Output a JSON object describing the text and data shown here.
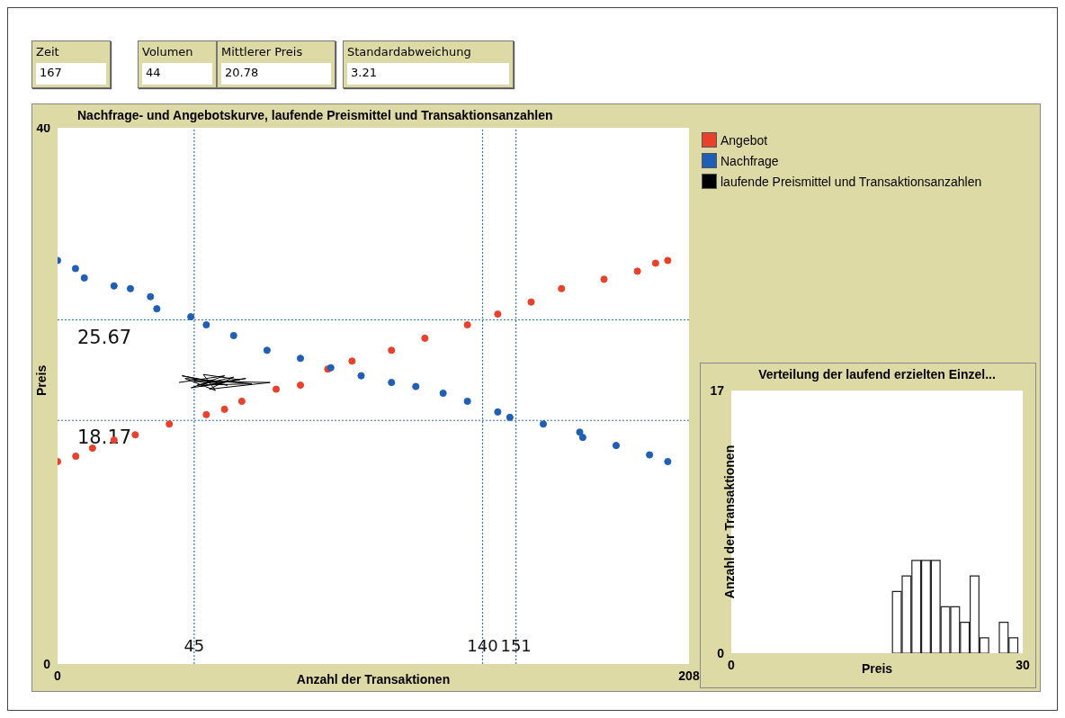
{
  "chart_data": [
    {
      "type": "other",
      "annotations": [
        "Zeit",
        "167",
        "Volumen",
        "44",
        "Mittlerer Preis",
        "20.78",
        "Standardabweichung",
        "3.21"
      ]
    },
    {
      "type": "scatter",
      "title": "Nachfrage- und Angebotskurve, laufende Preismittel und Transaktionsanzahlen",
      "xlabel": "Anzahl der Transaktionen",
      "ylabel": "Preis",
      "xlim": [
        0,
        208
      ],
      "xticks": [
        0,
        208
      ],
      "ylim": [
        0,
        40
      ],
      "yticks": [
        0,
        40
      ],
      "grid": false,
      "legend": "right",
      "marker": "circle",
      "series": [
        {
          "name": "Angebot",
          "color": "#e8412c",
          "x": [
            0,
            6,
            11.5,
            18.6,
            25.6,
            36.8,
            49,
            55,
            60.7,
            72,
            80,
            89,
            97,
            110,
            121,
            135,
            145,
            156,
            166,
            180,
            191,
            197,
            201
          ],
          "values": [
            15.1,
            15.5,
            16.1,
            16.7,
            17.1,
            17.9,
            18.6,
            19.0,
            19.6,
            20.5,
            20.8,
            22.0,
            22.6,
            23.4,
            24.3,
            25.3,
            26.1,
            27.0,
            28.0,
            28.7,
            29.3,
            29.9,
            30.1
          ]
        },
        {
          "name": "Nachfrage",
          "color": "#1f5fb4",
          "x": [
            0,
            5.9,
            8.8,
            18.6,
            24,
            30.6,
            32.7,
            43.9,
            49,
            58,
            69,
            80,
            90,
            100,
            110,
            118,
            127,
            135,
            145,
            149,
            160,
            172,
            173,
            184,
            195,
            201
          ],
          "values": [
            30.1,
            29.5,
            28.8,
            28.2,
            28.0,
            27.4,
            26.5,
            25.9,
            25.3,
            24.5,
            23.4,
            22.8,
            22.1,
            21.5,
            21.0,
            20.7,
            20.2,
            19.6,
            18.8,
            18.4,
            17.9,
            17.3,
            16.9,
            16.3,
            15.6,
            15.1
          ]
        },
        {
          "name": "laufende Preismittel und Transaktionsanzahlen",
          "color": "#000000",
          "type": "line",
          "marker": "none",
          "x": [
            40,
            55,
            44,
            60,
            48,
            52,
            42,
            64,
            46,
            58,
            50,
            70,
            45,
            56,
            41,
            53,
            62,
            47,
            51,
            49
          ],
          "values": [
            21.0,
            21.5,
            20.6,
            21.2,
            21.6,
            20.4,
            21.3,
            20.9,
            20.8,
            21.4,
            20.5,
            21.0,
            21.1,
            20.8,
            21.5,
            21.0,
            21.3,
            20.7,
            21.2,
            20.9
          ]
        }
      ],
      "ref_lines": [
        {
          "axis": "x",
          "value": 45,
          "label": "45",
          "color": "#2e75b6",
          "line_style": "dotted"
        },
        {
          "axis": "x",
          "value": 140,
          "label": "140",
          "color": "#2e75b6",
          "line_style": "dotted"
        },
        {
          "axis": "x",
          "value": 151,
          "label": "151",
          "color": "#2e75b6",
          "line_style": "dotted"
        },
        {
          "axis": "y",
          "value": 25.67,
          "label": "25.67",
          "color": "#2e75b6",
          "line_style": "dotted"
        },
        {
          "axis": "y",
          "value": 18.17,
          "label": "18.17",
          "color": "#2e75b6",
          "line_style": "dotted"
        }
      ]
    },
    {
      "type": "histogram",
      "title": "Verteilung der laufend erzielten Einzel...",
      "xlabel": "Preis",
      "ylabel": "Anzahl der Transaktionen",
      "bins": [
        16.5,
        17.5,
        18.5,
        19.5,
        20.5,
        21.5,
        22.5,
        23.5,
        24.5,
        25.5,
        26.5,
        27.5,
        28.5,
        29.5
      ],
      "values": [
        4,
        5,
        6,
        6,
        6,
        3,
        3,
        2,
        5,
        1,
        0,
        2,
        1
      ],
      "color": "#ffffff",
      "xlim": [
        0,
        30
      ],
      "xticks": [
        0,
        30
      ],
      "ylim": [
        0,
        17
      ],
      "yticks": [
        0,
        17
      ],
      "grid": false
    }
  ]
}
